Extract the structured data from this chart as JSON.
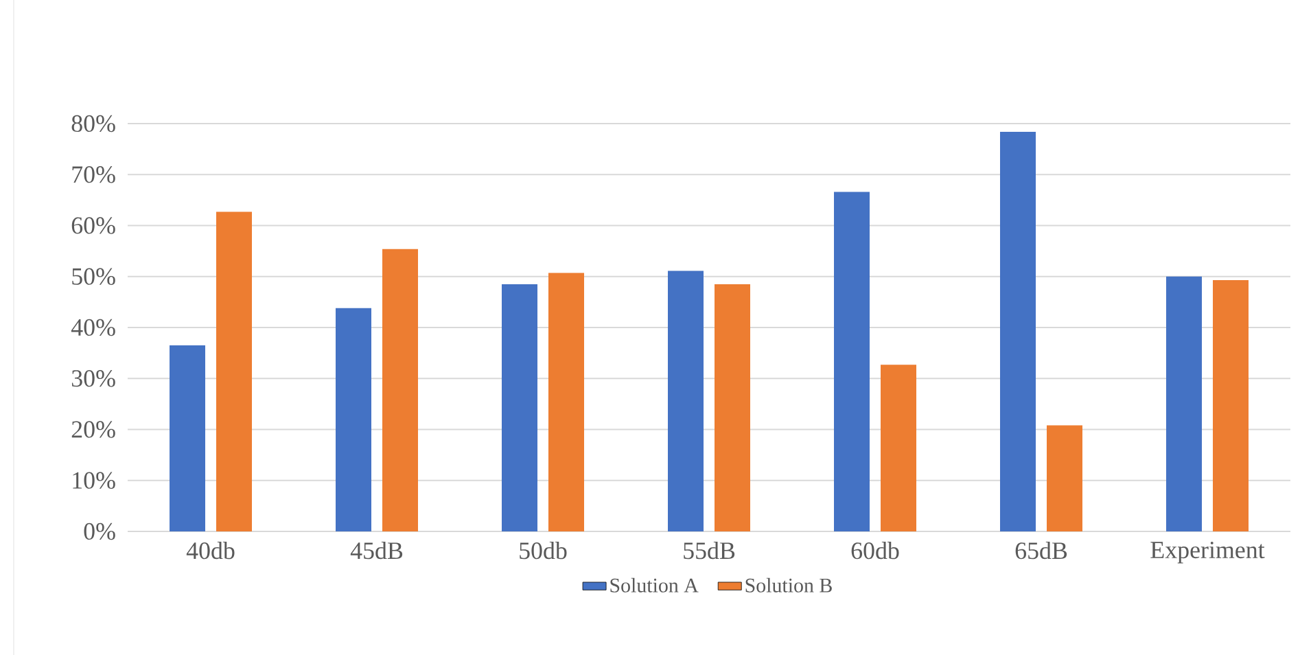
{
  "chart_data": {
    "type": "bar",
    "categories": [
      "40db",
      "45dB",
      "50db",
      "55dB",
      "60db",
      "65dB",
      "Experiment"
    ],
    "series": [
      {
        "name": "Solution A",
        "color": "#4472c4",
        "values": [
          36.5,
          43.8,
          48.5,
          51.1,
          66.6,
          78.4,
          50.0
        ]
      },
      {
        "name": "Solution B",
        "color": "#ed7d31",
        "values": [
          62.7,
          55.4,
          50.7,
          48.5,
          32.7,
          20.8,
          49.3
        ]
      }
    ],
    "ylim": [
      0,
      80
    ],
    "yticks": [
      {
        "value": 0,
        "label": "0%"
      },
      {
        "value": 10,
        "label": "10%"
      },
      {
        "value": 20,
        "label": "20%"
      },
      {
        "value": 30,
        "label": "30%"
      },
      {
        "value": 40,
        "label": "40%"
      },
      {
        "value": 50,
        "label": "50%"
      },
      {
        "value": 60,
        "label": "60%"
      },
      {
        "value": 70,
        "label": "70%"
      },
      {
        "value": 80,
        "label": "80%"
      }
    ],
    "grid": "y",
    "legend": "bottom"
  }
}
